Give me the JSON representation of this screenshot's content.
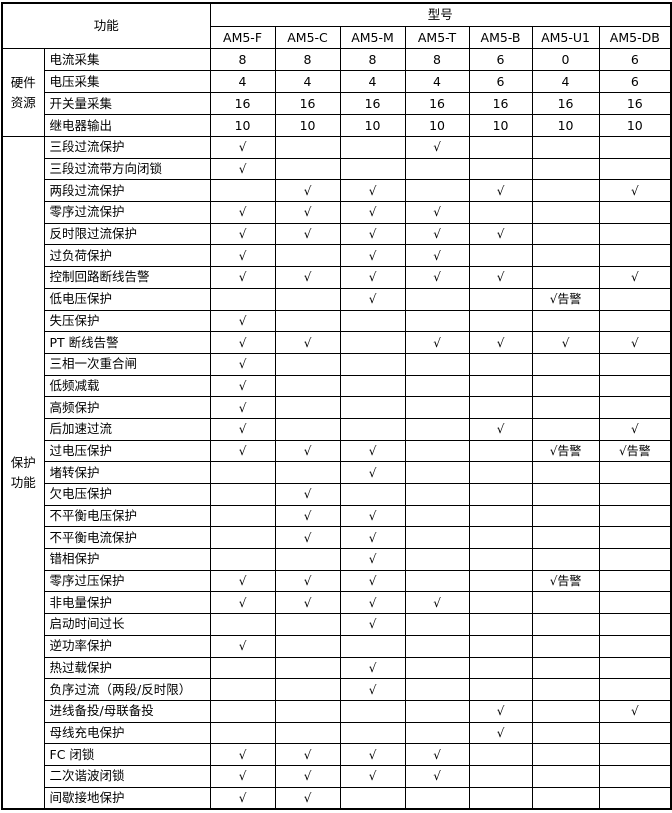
{
  "header": {
    "function_label": "功能",
    "model_label": "型号",
    "models": [
      "AM5-F",
      "AM5-C",
      "AM5-M",
      "AM5-T",
      "AM5-B",
      "AM5-U1",
      "AM5-DB"
    ]
  },
  "groups": [
    {
      "label": "硬件资源",
      "rows": [
        {
          "name": "电流采集",
          "values": [
            "8",
            "8",
            "8",
            "8",
            "6",
            "0",
            "6"
          ]
        },
        {
          "name": "电压采集",
          "values": [
            "4",
            "4",
            "4",
            "4",
            "6",
            "4",
            "6"
          ]
        },
        {
          "name": "开关量采集",
          "values": [
            "16",
            "16",
            "16",
            "16",
            "16",
            "16",
            "16"
          ]
        },
        {
          "name": "继电器输出",
          "values": [
            "10",
            "10",
            "10",
            "10",
            "10",
            "10",
            "10"
          ]
        }
      ]
    },
    {
      "label": "保护功能",
      "rows": [
        {
          "name": "三段过流保护",
          "values": [
            "√",
            "",
            "",
            "√",
            "",
            "",
            ""
          ]
        },
        {
          "name": "三段过流带方向闭锁",
          "values": [
            "√",
            "",
            "",
            "",
            "",
            "",
            ""
          ]
        },
        {
          "name": "两段过流保护",
          "values": [
            "",
            "√",
            "√",
            "",
            "√",
            "",
            "√"
          ]
        },
        {
          "name": "零序过流保护",
          "values": [
            "√",
            "√",
            "√",
            "√",
            "",
            "",
            ""
          ]
        },
        {
          "name": "反时限过流保护",
          "values": [
            "√",
            "√",
            "√",
            "√",
            "√",
            "",
            ""
          ]
        },
        {
          "name": "过负荷保护",
          "values": [
            "√",
            "",
            "√",
            "√",
            "",
            "",
            ""
          ]
        },
        {
          "name": "控制回路断线告警",
          "values": [
            "√",
            "√",
            "√",
            "√",
            "√",
            "",
            "√"
          ]
        },
        {
          "name": "低电压保护",
          "values": [
            "",
            "",
            "√",
            "",
            "",
            "√告警",
            ""
          ]
        },
        {
          "name": "失压保护",
          "values": [
            "√",
            "",
            "",
            "",
            "",
            "",
            ""
          ]
        },
        {
          "name": "PT 断线告警",
          "values": [
            "√",
            "√",
            "",
            "√",
            "√",
            "√",
            "√"
          ]
        },
        {
          "name": "三相一次重合闸",
          "values": [
            "√",
            "",
            "",
            "",
            "",
            "",
            ""
          ]
        },
        {
          "name": "低频减载",
          "values": [
            "√",
            "",
            "",
            "",
            "",
            "",
            ""
          ]
        },
        {
          "name": "高频保护",
          "values": [
            "√",
            "",
            "",
            "",
            "",
            "",
            ""
          ]
        },
        {
          "name": "后加速过流",
          "values": [
            "√",
            "",
            "",
            "",
            "√",
            "",
            "√"
          ]
        },
        {
          "name": "过电压保护",
          "values": [
            "√",
            "√",
            "√",
            "",
            "",
            "√告警",
            "√告警"
          ]
        },
        {
          "name": "堵转保护",
          "values": [
            "",
            "",
            "√",
            "",
            "",
            "",
            ""
          ]
        },
        {
          "name": "欠电压保护",
          "values": [
            "",
            "√",
            "",
            "",
            "",
            "",
            ""
          ]
        },
        {
          "name": "不平衡电压保护",
          "values": [
            "",
            "√",
            "√",
            "",
            "",
            "",
            ""
          ]
        },
        {
          "name": "不平衡电流保护",
          "values": [
            "",
            "√",
            "√",
            "",
            "",
            "",
            ""
          ]
        },
        {
          "name": "错相保护",
          "values": [
            "",
            "",
            "√",
            "",
            "",
            "",
            ""
          ]
        },
        {
          "name": "零序过压保护",
          "values": [
            "√",
            "√",
            "√",
            "",
            "",
            "√告警",
            ""
          ]
        },
        {
          "name": "非电量保护",
          "values": [
            "√",
            "√",
            "√",
            "√",
            "",
            "",
            ""
          ]
        },
        {
          "name": "启动时间过长",
          "values": [
            "",
            "",
            "√",
            "",
            "",
            "",
            ""
          ]
        },
        {
          "name": "逆功率保护",
          "values": [
            "√",
            "",
            "",
            "",
            "",
            "",
            ""
          ]
        },
        {
          "name": "热过载保护",
          "values": [
            "",
            "",
            "√",
            "",
            "",
            "",
            ""
          ]
        },
        {
          "name": "负序过流（两段/反时限）",
          "values": [
            "",
            "",
            "√",
            "",
            "",
            "",
            ""
          ]
        },
        {
          "name": "进线备投/母联备投",
          "values": [
            "",
            "",
            "",
            "",
            "√",
            "",
            "√"
          ]
        },
        {
          "name": "母线充电保护",
          "values": [
            "",
            "",
            "",
            "",
            "√",
            "",
            ""
          ]
        },
        {
          "name": "FC 闭锁",
          "values": [
            "√",
            "√",
            "√",
            "√",
            "",
            "",
            ""
          ]
        },
        {
          "name": "二次谐波闭锁",
          "values": [
            "√",
            "√",
            "√",
            "√",
            "",
            "",
            ""
          ]
        },
        {
          "name": "间歇接地保护",
          "values": [
            "√",
            "√",
            "",
            "",
            "",
            "",
            ""
          ]
        }
      ]
    }
  ]
}
